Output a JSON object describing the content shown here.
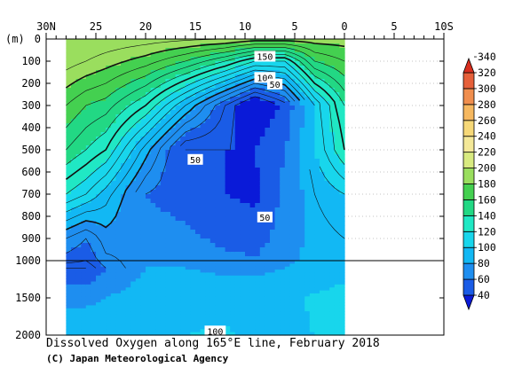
{
  "chart_data": {
    "type": "heatmap",
    "title": "Dissolved Oxygen along 165°E line, February 2018",
    "credit": "(C) Japan Meteorological Agency",
    "y_unit_label": "(m)",
    "x_ticks": [
      {
        "lat": 30,
        "label": "30N"
      },
      {
        "lat": 25,
        "label": "25"
      },
      {
        "lat": 20,
        "label": "20"
      },
      {
        "lat": 15,
        "label": "15"
      },
      {
        "lat": 10,
        "label": "10"
      },
      {
        "lat": 5,
        "label": "5"
      },
      {
        "lat": 0,
        "label": "0"
      },
      {
        "lat": -5,
        "label": "5"
      },
      {
        "lat": -10,
        "label": "10S"
      }
    ],
    "xlim": [
      30,
      -10
    ],
    "data_lat_range": [
      28,
      0
    ],
    "y_axis_upper": {
      "range": [
        0,
        1000
      ],
      "ticks": [
        0,
        100,
        200,
        300,
        400,
        500,
        600,
        700,
        800,
        900,
        1000
      ]
    },
    "y_axis_lower": {
      "range": [
        1000,
        2000
      ],
      "ticks": [
        1500,
        2000
      ]
    },
    "colorbar": {
      "levels": [
        40,
        60,
        80,
        100,
        120,
        140,
        160,
        180,
        200,
        220,
        240,
        260,
        280,
        300,
        320,
        340
      ],
      "colors": [
        "#0a1ad8",
        "#1a5ce6",
        "#1e8ef0",
        "#12b8f4",
        "#18d6ec",
        "#20e8c4",
        "#22d884",
        "#44d050",
        "#9ade5e",
        "#d8ea80",
        "#f4e898",
        "#f6d878",
        "#f6b860",
        "#f08e4e",
        "#e6603a",
        "#d82e1e"
      ]
    },
    "contour_labels": [
      {
        "text": "150",
        "lat": 8.0,
        "depth": 80
      },
      {
        "text": "100",
        "lat": 8.0,
        "depth": 175
      },
      {
        "text": "50",
        "lat": 7.0,
        "depth": 205
      },
      {
        "text": "50",
        "lat": 15.0,
        "depth": 545
      },
      {
        "text": "50",
        "lat": 8.0,
        "depth": 805
      },
      {
        "text": "100",
        "lat": 13.0,
        "depth": 1950
      }
    ],
    "field_profiles": [
      {
        "lat": 28,
        "depths": [
          0,
          100,
          300,
          500,
          700,
          900,
          1100,
          1500,
          2000
        ],
        "values": [
          220,
          215,
          190,
          170,
          140,
          90,
          60,
          95,
          115
        ]
      },
      {
        "lat": 26,
        "depths": [
          0,
          100,
          300,
          500,
          700,
          900,
          1100,
          1500,
          2000
        ],
        "values": [
          220,
          210,
          180,
          160,
          130,
          80,
          60,
          95,
          115
        ]
      },
      {
        "lat": 24,
        "depths": [
          0,
          100,
          300,
          500,
          700,
          900,
          1100,
          1500,
          2000
        ],
        "values": [
          218,
          205,
          175,
          150,
          115,
          95,
          80,
          100,
          118
        ]
      },
      {
        "lat": 20,
        "depths": [
          0,
          100,
          300,
          500,
          700,
          900,
          1100,
          1500,
          2000
        ],
        "values": [
          215,
          195,
          150,
          105,
          80,
          90,
          100,
          110,
          120
        ]
      },
      {
        "lat": 16,
        "depths": [
          0,
          100,
          300,
          500,
          700,
          900,
          1100,
          1500,
          2000
        ],
        "values": [
          212,
          180,
          110,
          60,
          70,
          85,
          100,
          115,
          120
        ]
      },
      {
        "lat": 12,
        "depths": [
          0,
          100,
          300,
          500,
          700,
          900,
          1100,
          1500,
          2000
        ],
        "values": [
          210,
          160,
          70,
          60,
          60,
          75,
          95,
          115,
          122
        ]
      },
      {
        "lat": 9,
        "depths": [
          0,
          100,
          300,
          500,
          700,
          900,
          1100,
          1500,
          2000
        ],
        "values": [
          205,
          140,
          40,
          60,
          55,
          70,
          95,
          112,
          115
        ]
      },
      {
        "lat": 6,
        "depths": [
          0,
          100,
          300,
          500,
          700,
          900,
          1100,
          1500,
          2000
        ],
        "values": [
          205,
          140,
          65,
          80,
          85,
          90,
          100,
          115,
          118
        ]
      },
      {
        "lat": 3,
        "depths": [
          0,
          100,
          300,
          500,
          700,
          900,
          1100,
          1500,
          2000
        ],
        "values": [
          205,
          180,
          120,
          120,
          110,
          105,
          110,
          122,
          120
        ]
      },
      {
        "lat": 0,
        "depths": [
          0,
          100,
          300,
          500,
          700,
          900,
          1100,
          1500,
          2000
        ],
        "values": [
          205,
          190,
          160,
          150,
          120,
          110,
          115,
          125,
          120
        ]
      }
    ]
  }
}
